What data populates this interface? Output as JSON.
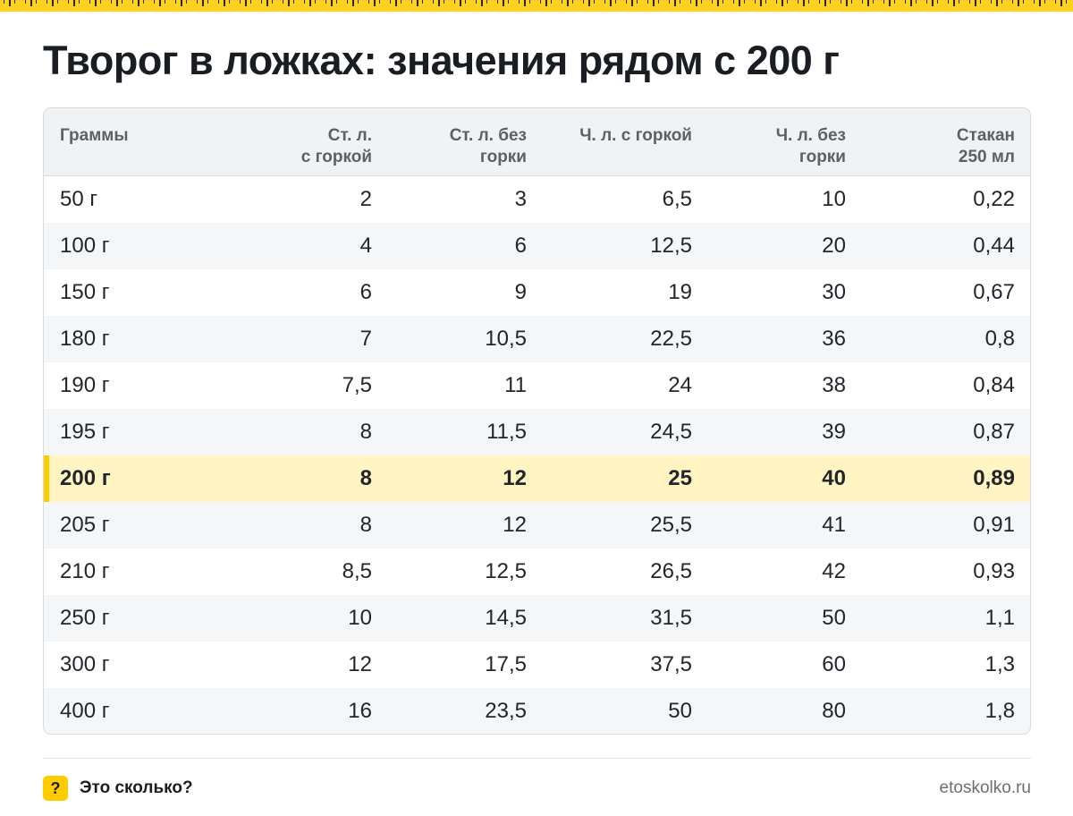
{
  "title": "Творог в ложках: значения рядом с 200 г",
  "columns": [
    "Граммы",
    "Ст. л.\nс горкой",
    "Ст. л. без\nгорки",
    "Ч. л. с горкой",
    "Ч. л. без\nгорки",
    "Стакан\n250 мл"
  ],
  "rows": [
    [
      "50 г",
      "2",
      "3",
      "6,5",
      "10",
      "0,22"
    ],
    [
      "100 г",
      "4",
      "6",
      "12,5",
      "20",
      "0,44"
    ],
    [
      "150 г",
      "6",
      "9",
      "19",
      "30",
      "0,67"
    ],
    [
      "180 г",
      "7",
      "10,5",
      "22,5",
      "36",
      "0,8"
    ],
    [
      "190 г",
      "7,5",
      "11",
      "24",
      "38",
      "0,84"
    ],
    [
      "195 г",
      "8",
      "11,5",
      "24,5",
      "39",
      "0,87"
    ],
    [
      "200 г",
      "8",
      "12",
      "25",
      "40",
      "0,89"
    ],
    [
      "205 г",
      "8",
      "12",
      "25,5",
      "41",
      "0,91"
    ],
    [
      "210 г",
      "8,5",
      "12,5",
      "26,5",
      "42",
      "0,93"
    ],
    [
      "250 г",
      "10",
      "14,5",
      "31,5",
      "50",
      "1,1"
    ],
    [
      "300 г",
      "12",
      "17,5",
      "37,5",
      "60",
      "1,3"
    ],
    [
      "400 г",
      "16",
      "23,5",
      "50",
      "80",
      "1,8"
    ]
  ],
  "highlight_row": 6,
  "footer": {
    "badge": "?",
    "brand": "Это сколько?",
    "site": "etoskolko.ru"
  },
  "colors": {
    "accent": "#ffcc00",
    "highlight_bg": "#fff4c2",
    "header_bg": "#f0f2f4",
    "stripe_bg": "#f4f6f8"
  }
}
